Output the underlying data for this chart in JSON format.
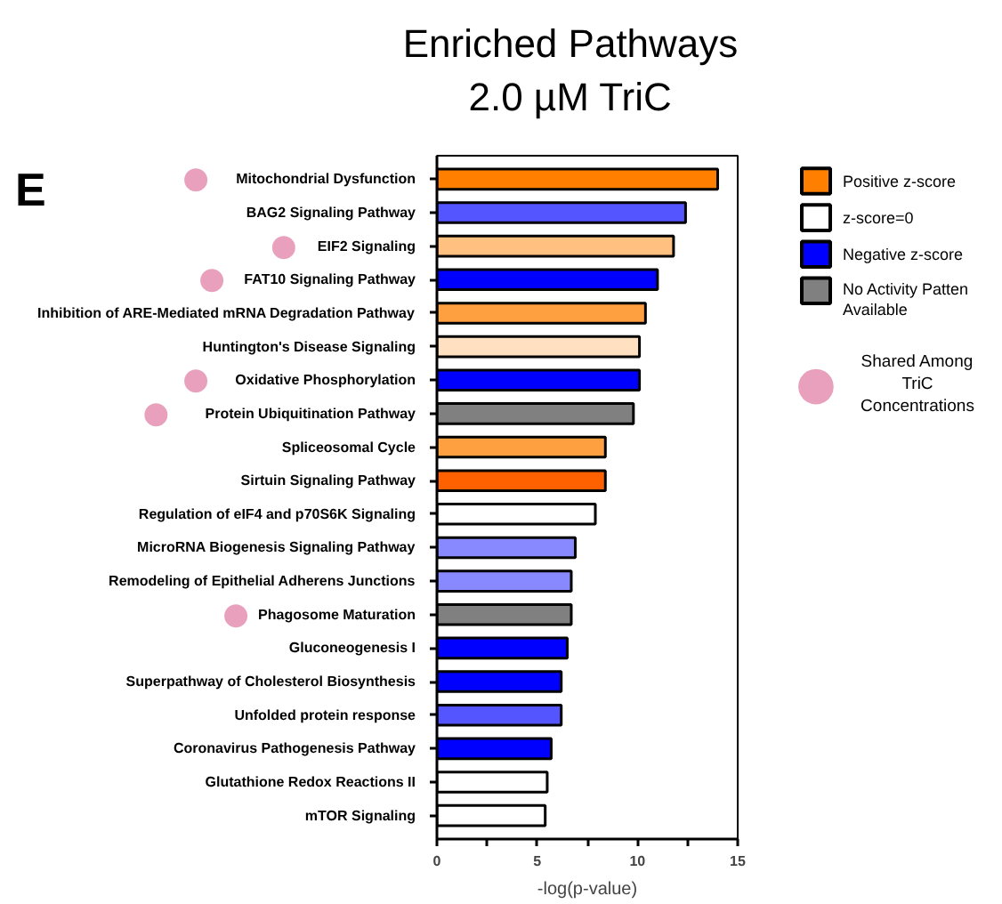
{
  "chart_data": {
    "type": "bar",
    "orientation": "horizontal",
    "title": "Enriched Pathways",
    "subtitle": "2.0 µM TriC",
    "xlabel": "-log(p-value)",
    "annotations": [
      "E",
      "Shared Among TriC Concentrations",
      "●",
      "●",
      "●",
      "●",
      "●",
      "●",
      "●"
    ],
    "categories": [
      "Mitochondrial Dysfunction",
      "BAG2 Signaling Pathway",
      "EIF2 Signaling",
      "FAT10 Signaling Pathway",
      "Inhibition of ARE-Mediated mRNA Degradation Pathway",
      "Huntington's Disease Signaling",
      "Oxidative Phosphorylation",
      "Protein Ubiquitination Pathway",
      "Spliceosomal Cycle",
      "Sirtuin Signaling Pathway",
      "Regulation of eIF4 and p70S6K Signaling",
      "MicroRNA Biogenesis Signaling Pathway",
      "Remodeling of Epithelial Adherens Junctions",
      "Phagosome Maturation",
      "Gluconeogenesis I",
      "Superpathway of Cholesterol Biosynthesis",
      "Unfolded protein response",
      "Coronavirus Pathogenesis Pathway",
      "Glutathione Redox Reactions II",
      "mTOR Signaling"
    ],
    "series": [
      {
        "name": "Positive z-score",
        "color": "#ff8000",
        "colors": [
          "#ff8000",
          null,
          "#ffc080",
          null,
          "#ffa040",
          "#ffe0c0",
          null,
          null,
          "#ffa040",
          "#ff6000",
          null,
          null,
          null,
          null,
          null,
          null,
          null,
          null,
          null,
          null
        ],
        "values": [
          14.0,
          null,
          11.8,
          null,
          10.4,
          10.1,
          null,
          null,
          8.4,
          8.4,
          null,
          null,
          null,
          null,
          null,
          null,
          null,
          null,
          null,
          null
        ]
      },
      {
        "name": "z-score=0",
        "color": "#ffffff",
        "colors": [
          null,
          null,
          null,
          null,
          null,
          null,
          null,
          null,
          null,
          null,
          "#ffffff",
          null,
          null,
          null,
          null,
          null,
          null,
          null,
          "#ffffff",
          "#ffffff"
        ],
        "values": [
          null,
          null,
          null,
          null,
          null,
          null,
          null,
          null,
          null,
          null,
          7.9,
          null,
          null,
          null,
          null,
          null,
          null,
          null,
          5.5,
          5.4
        ]
      },
      {
        "name": "Negative z-score",
        "color": "#0000ff",
        "colors": [
          null,
          "#5555ff",
          null,
          "#0000ff",
          null,
          null,
          "#0000ff",
          null,
          null,
          null,
          null,
          "#8888ff",
          "#8888ff",
          null,
          "#0000ff",
          "#0000ff",
          "#5555ff",
          "#0000ff",
          null,
          null
        ],
        "values": [
          null,
          12.4,
          null,
          11.0,
          null,
          null,
          10.1,
          null,
          null,
          null,
          null,
          6.9,
          6.7,
          null,
          6.5,
          6.2,
          6.2,
          5.7,
          null,
          null
        ]
      },
      {
        "name": "No Activity Patten Available",
        "color": "#808080",
        "colors": [
          null,
          null,
          null,
          null,
          null,
          null,
          null,
          "#808080",
          null,
          null,
          null,
          null,
          null,
          "#808080",
          null,
          null,
          null,
          null,
          null,
          null
        ],
        "values": [
          null,
          null,
          null,
          null,
          null,
          null,
          null,
          9.8,
          null,
          null,
          null,
          null,
          null,
          6.7,
          null,
          null,
          null,
          null,
          null,
          null
        ]
      }
    ],
    "xlim": [
      0,
      15
    ],
    "xticks": [
      0,
      {
        "value": 2.5,
        "label": null
      },
      5,
      {
        "value": 7.5,
        "label": null
      },
      10,
      {
        "value": 12.5,
        "label": null
      },
      15
    ],
    "legend": "right",
    "grid": false
  }
}
